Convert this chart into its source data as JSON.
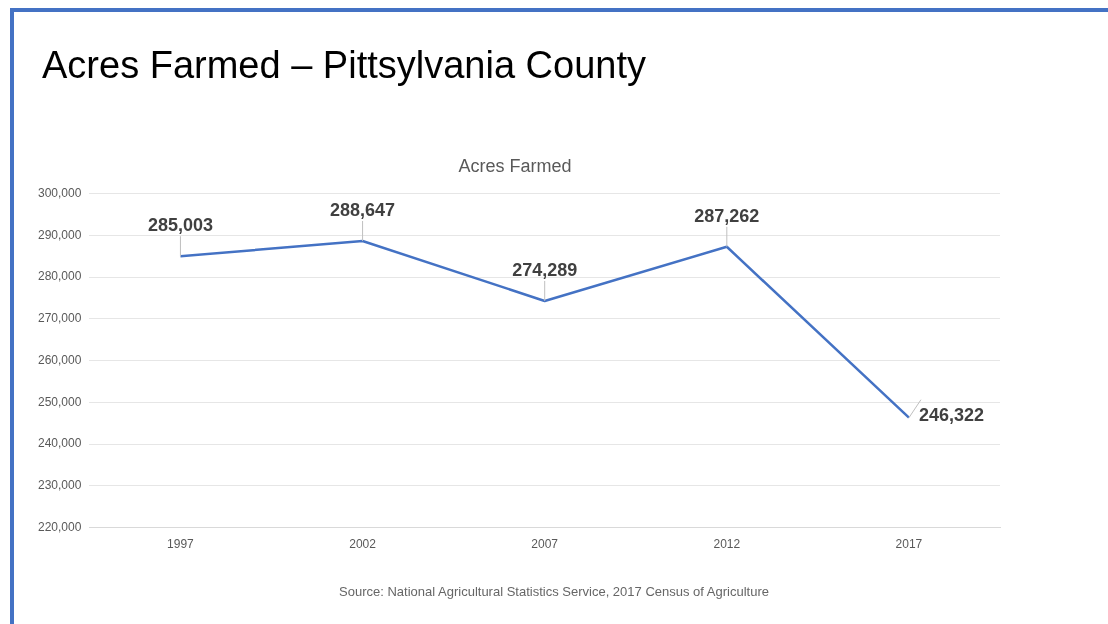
{
  "chart_data": {
    "type": "line",
    "title": "Acres Farmed – Pittsylvania County",
    "subtitle": "Acres Farmed",
    "categories": [
      "1997",
      "2002",
      "2007",
      "2012",
      "2017"
    ],
    "values": [
      285003,
      288647,
      274289,
      287262,
      246322
    ],
    "value_labels": [
      "285,003",
      "288,647",
      "274,289",
      "287,262",
      "246,322"
    ],
    "color": "#4472c4",
    "ylim": [
      220000,
      300000
    ],
    "yticks": [
      {
        "value": 220000,
        "label": "220,000"
      },
      {
        "value": 230000,
        "label": "230,000"
      },
      {
        "value": 240000,
        "label": "240,000"
      },
      {
        "value": 250000,
        "label": "250,000"
      },
      {
        "value": 260000,
        "label": "260,000"
      },
      {
        "value": 270000,
        "label": "270,000"
      },
      {
        "value": 280000,
        "label": "280,000"
      },
      {
        "value": 290000,
        "label": "290,000"
      },
      {
        "value": 300000,
        "label": "300,000"
      }
    ],
    "grid": "y",
    "legend": false,
    "marker": "none",
    "line_style": "solid",
    "annotations": [
      "Source: National Agricultural Statistics Service, 2017 Census of Agriculture"
    ]
  }
}
